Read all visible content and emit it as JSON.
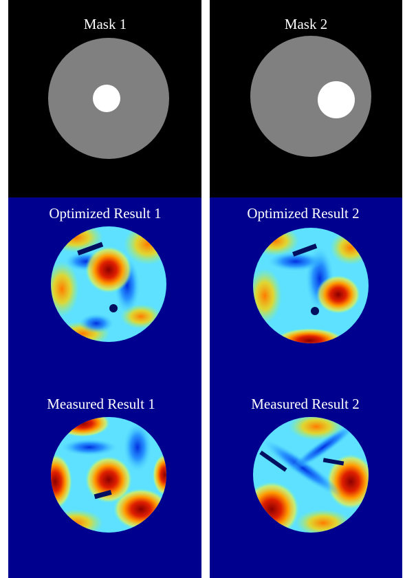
{
  "panels": [
    {
      "title": "Mask 1"
    },
    {
      "title": "Mask 2"
    },
    {
      "title": "Optimized Result 1"
    },
    {
      "title": "Optimized Result 2"
    },
    {
      "title": "Measured Result 1"
    },
    {
      "title": "Measured Result 2"
    }
  ]
}
